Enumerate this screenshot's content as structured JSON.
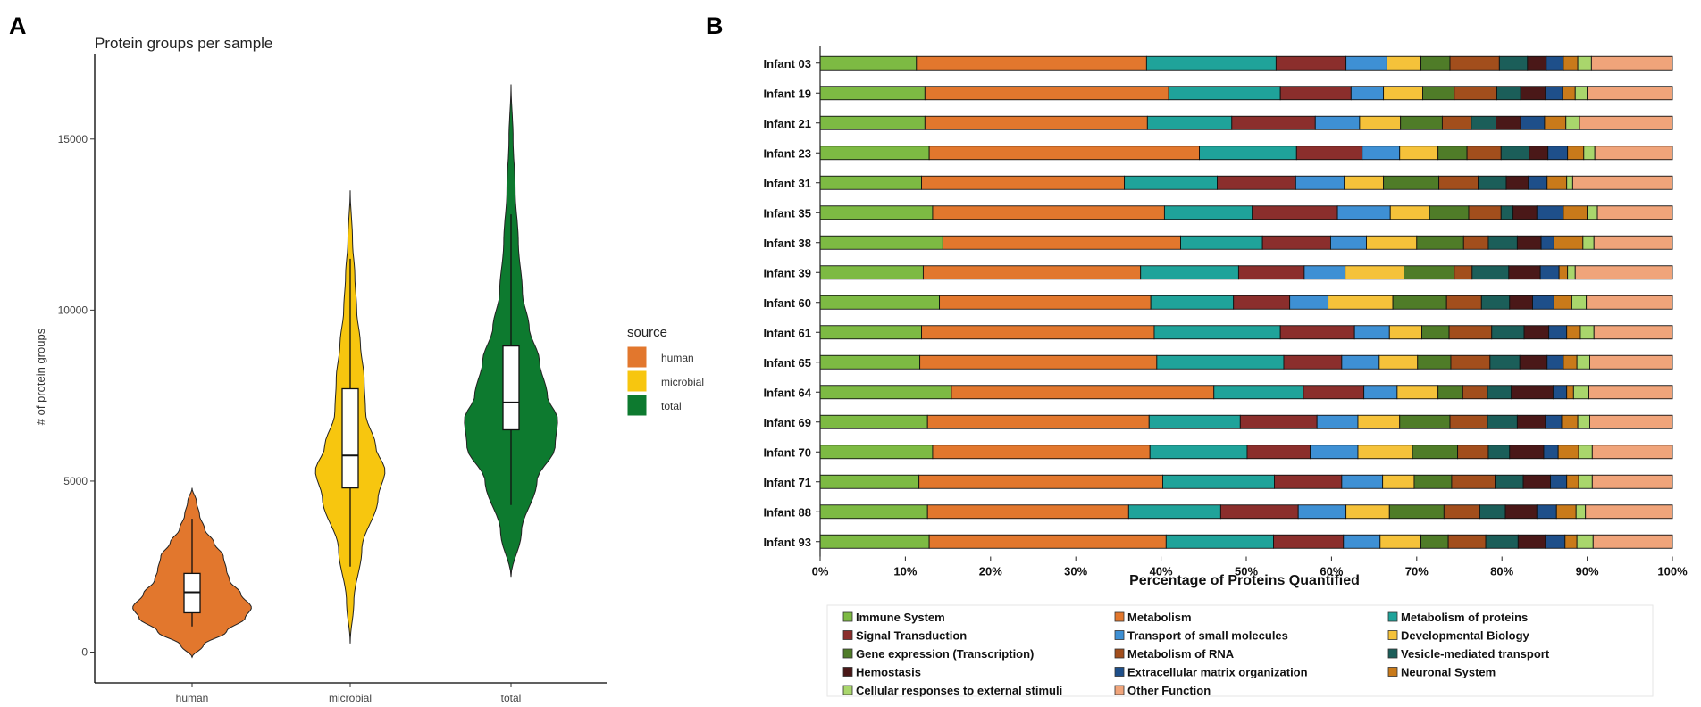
{
  "panels": {
    "a": "A",
    "b": "B"
  },
  "chart_data": [
    {
      "type": "violin",
      "title": "Protein groups per sample",
      "xlabel": "",
      "ylabel": "# of protein groups",
      "categories": [
        "human",
        "microbial",
        "total"
      ],
      "ylim": [
        -900,
        17500
      ],
      "yticks": [
        0,
        5000,
        10000,
        15000
      ],
      "ytick_labels": [
        "0",
        "5000",
        "10000",
        "15000"
      ],
      "legend": {
        "title": "source",
        "position": "right",
        "items": [
          "human",
          "microbial",
          "total"
        ]
      },
      "series": [
        {
          "name": "human",
          "color": "#e2772d",
          "violin": {
            "min": -150,
            "max": 4800,
            "profile": [
              [
                -150,
                0
              ],
              [
                200,
                0.18
              ],
              [
                600,
                0.55
              ],
              [
                1000,
                0.85
              ],
              [
                1300,
                0.95
              ],
              [
                1700,
                0.78
              ],
              [
                2100,
                0.6
              ],
              [
                2400,
                0.55
              ],
              [
                2800,
                0.5
              ],
              [
                3200,
                0.35
              ],
              [
                3600,
                0.2
              ],
              [
                4000,
                0.12
              ],
              [
                4400,
                0.07
              ],
              [
                4800,
                0
              ]
            ]
          },
          "box": {
            "q1": 1150,
            "median": 1750,
            "q3": 2300,
            "whisker_low": 750,
            "whisker_high": 3900
          }
        },
        {
          "name": "microbial",
          "color": "#f7c60f",
          "violin": {
            "min": 250,
            "max": 13500,
            "profile": [
              [
                250,
                0
              ],
              [
                1500,
                0.08
              ],
              [
                3000,
                0.25
              ],
              [
                4500,
                0.6
              ],
              [
                5300,
                0.75
              ],
              [
                6000,
                0.55
              ],
              [
                7000,
                0.33
              ],
              [
                8000,
                0.3
              ],
              [
                9000,
                0.22
              ],
              [
                10000,
                0.14
              ],
              [
                11000,
                0.1
              ],
              [
                12000,
                0.05
              ],
              [
                13500,
                0
              ]
            ]
          },
          "box": {
            "q1": 4800,
            "median": 5750,
            "q3": 7700,
            "whisker_low": 2500,
            "whisker_high": 11500
          }
        },
        {
          "name": "total",
          "color": "#0d7a2f",
          "violin": {
            "min": 2200,
            "max": 16600,
            "profile": [
              [
                2200,
                0
              ],
              [
                3500,
                0.2
              ],
              [
                5000,
                0.5
              ],
              [
                6000,
                0.85
              ],
              [
                6800,
                0.9
              ],
              [
                7500,
                0.7
              ],
              [
                8500,
                0.55
              ],
              [
                9500,
                0.35
              ],
              [
                10500,
                0.22
              ],
              [
                12000,
                0.14
              ],
              [
                13500,
                0.08
              ],
              [
                15000,
                0.04
              ],
              [
                16600,
                0
              ]
            ]
          },
          "box": {
            "q1": 6500,
            "median": 7300,
            "q3": 8950,
            "whisker_low": 4300,
            "whisker_high": 12800
          }
        }
      ]
    },
    {
      "type": "stacked_bar_horizontal",
      "title": "",
      "xlabel": "Percentage of Proteins Quantified",
      "ylabel": "",
      "xlim": [
        0,
        100
      ],
      "xticks": [
        0,
        10,
        20,
        30,
        40,
        50,
        60,
        70,
        80,
        90,
        100
      ],
      "xtick_labels": [
        "0%",
        "10%",
        "20%",
        "30%",
        "40%",
        "50%",
        "60%",
        "70%",
        "80%",
        "90%",
        "100%"
      ],
      "categories": [
        "Infant 03",
        "Infant 19",
        "Infant 21",
        "Infant 23",
        "Infant 31",
        "Infant 35",
        "Infant 38",
        "Infant 39",
        "Infant 60",
        "Infant 61",
        "Infant 65",
        "Infant 64",
        "Infant 69",
        "Infant 70",
        "Infant 71",
        "Infant 88",
        "Infant 93"
      ],
      "legend": {
        "position": "bottom"
      },
      "series": [
        {
          "name": "Immune System",
          "color": "#7dba43",
          "values": [
            11.3,
            12.3,
            12.3,
            12.8,
            11.9,
            13.2,
            14.4,
            12.1,
            14.0,
            11.9,
            11.7,
            15.4,
            12.6,
            13.2,
            11.6,
            12.6,
            12.8
          ]
        },
        {
          "name": "Metabolism",
          "color": "#e2772d",
          "values": [
            27.0,
            28.6,
            26.1,
            31.7,
            23.8,
            27.2,
            27.9,
            25.5,
            24.8,
            27.3,
            27.8,
            30.8,
            26.0,
            25.5,
            28.6,
            23.6,
            27.8
          ]
        },
        {
          "name": "Metabolism of proteins",
          "color": "#1fa39a",
          "values": [
            15.2,
            13.1,
            9.9,
            11.4,
            10.9,
            10.3,
            9.6,
            11.5,
            9.7,
            14.8,
            14.9,
            10.5,
            10.7,
            11.4,
            13.1,
            10.8,
            12.6
          ]
        },
        {
          "name": "Signal Transduction",
          "color": "#8b2e2c",
          "values": [
            8.2,
            8.3,
            9.8,
            7.7,
            9.2,
            10.0,
            8.0,
            7.7,
            6.6,
            8.7,
            6.8,
            7.1,
            9.0,
            7.4,
            7.9,
            9.1,
            8.2
          ]
        },
        {
          "name": "Transport of small molecules",
          "color": "#3e90d4",
          "values": [
            4.8,
            3.8,
            5.2,
            4.4,
            5.7,
            6.2,
            4.2,
            4.8,
            4.5,
            4.1,
            4.4,
            3.9,
            4.8,
            5.6,
            4.8,
            5.6,
            4.3
          ]
        },
        {
          "name": "Developmental Biology",
          "color": "#f5c23a",
          "values": [
            4.0,
            4.6,
            4.8,
            4.5,
            4.6,
            4.6,
            5.9,
            6.9,
            7.6,
            3.8,
            4.5,
            4.8,
            4.9,
            6.4,
            3.7,
            5.1,
            4.8
          ]
        },
        {
          "name": "Gene expression (Transcription)",
          "color": "#4f7c28",
          "values": [
            3.4,
            3.7,
            4.9,
            3.4,
            6.5,
            4.6,
            5.5,
            5.9,
            6.3,
            3.2,
            3.9,
            2.9,
            5.9,
            5.3,
            4.4,
            6.4,
            3.2
          ]
        },
        {
          "name": "Metabolism of RNA",
          "color": "#a24e1c",
          "values": [
            5.8,
            5.0,
            3.4,
            4.0,
            4.6,
            3.8,
            2.9,
            2.1,
            4.1,
            5.0,
            4.6,
            2.9,
            4.4,
            3.6,
            5.1,
            4.2,
            4.4
          ]
        },
        {
          "name": "Vesicle-mediated transport",
          "color": "#1b5e59",
          "values": [
            3.3,
            2.8,
            2.9,
            3.3,
            3.3,
            1.4,
            3.4,
            4.3,
            3.3,
            3.8,
            3.5,
            2.8,
            3.5,
            2.5,
            3.3,
            3.0,
            3.8
          ]
        },
        {
          "name": "Hemostasis",
          "color": "#4a1818",
          "values": [
            2.2,
            2.9,
            2.9,
            2.2,
            2.6,
            2.8,
            2.8,
            3.7,
            2.7,
            2.9,
            3.2,
            4.9,
            3.3,
            4.0,
            3.2,
            3.7,
            3.2
          ]
        },
        {
          "name": "Extracellular matrix organization",
          "color": "#1e4f8a",
          "values": [
            2.0,
            2.0,
            2.8,
            2.3,
            2.2,
            3.1,
            1.5,
            2.2,
            2.5,
            2.1,
            1.9,
            1.6,
            1.9,
            1.7,
            1.9,
            2.3,
            2.3
          ]
        },
        {
          "name": "Neuronal System",
          "color": "#c97a1a",
          "values": [
            1.7,
            1.5,
            2.5,
            1.9,
            2.3,
            2.8,
            3.4,
            1.0,
            2.1,
            1.6,
            1.6,
            0.8,
            1.9,
            2.4,
            1.4,
            2.3,
            1.4
          ]
        },
        {
          "name": "Cellular responses to external stimuli",
          "color": "#a9d66c",
          "values": [
            1.6,
            1.4,
            1.6,
            1.3,
            0.7,
            1.2,
            1.3,
            0.9,
            1.7,
            1.6,
            1.5,
            1.8,
            1.4,
            1.6,
            1.6,
            1.1,
            1.9
          ]
        },
        {
          "name": "Other Function",
          "color": "#f0a47a",
          "values": [
            9.5,
            10.0,
            10.9,
            9.1,
            11.7,
            8.8,
            9.2,
            11.4,
            10.1,
            9.2,
            9.7,
            9.8,
            9.7,
            9.4,
            9.4,
            10.2,
            9.3
          ]
        }
      ]
    }
  ]
}
